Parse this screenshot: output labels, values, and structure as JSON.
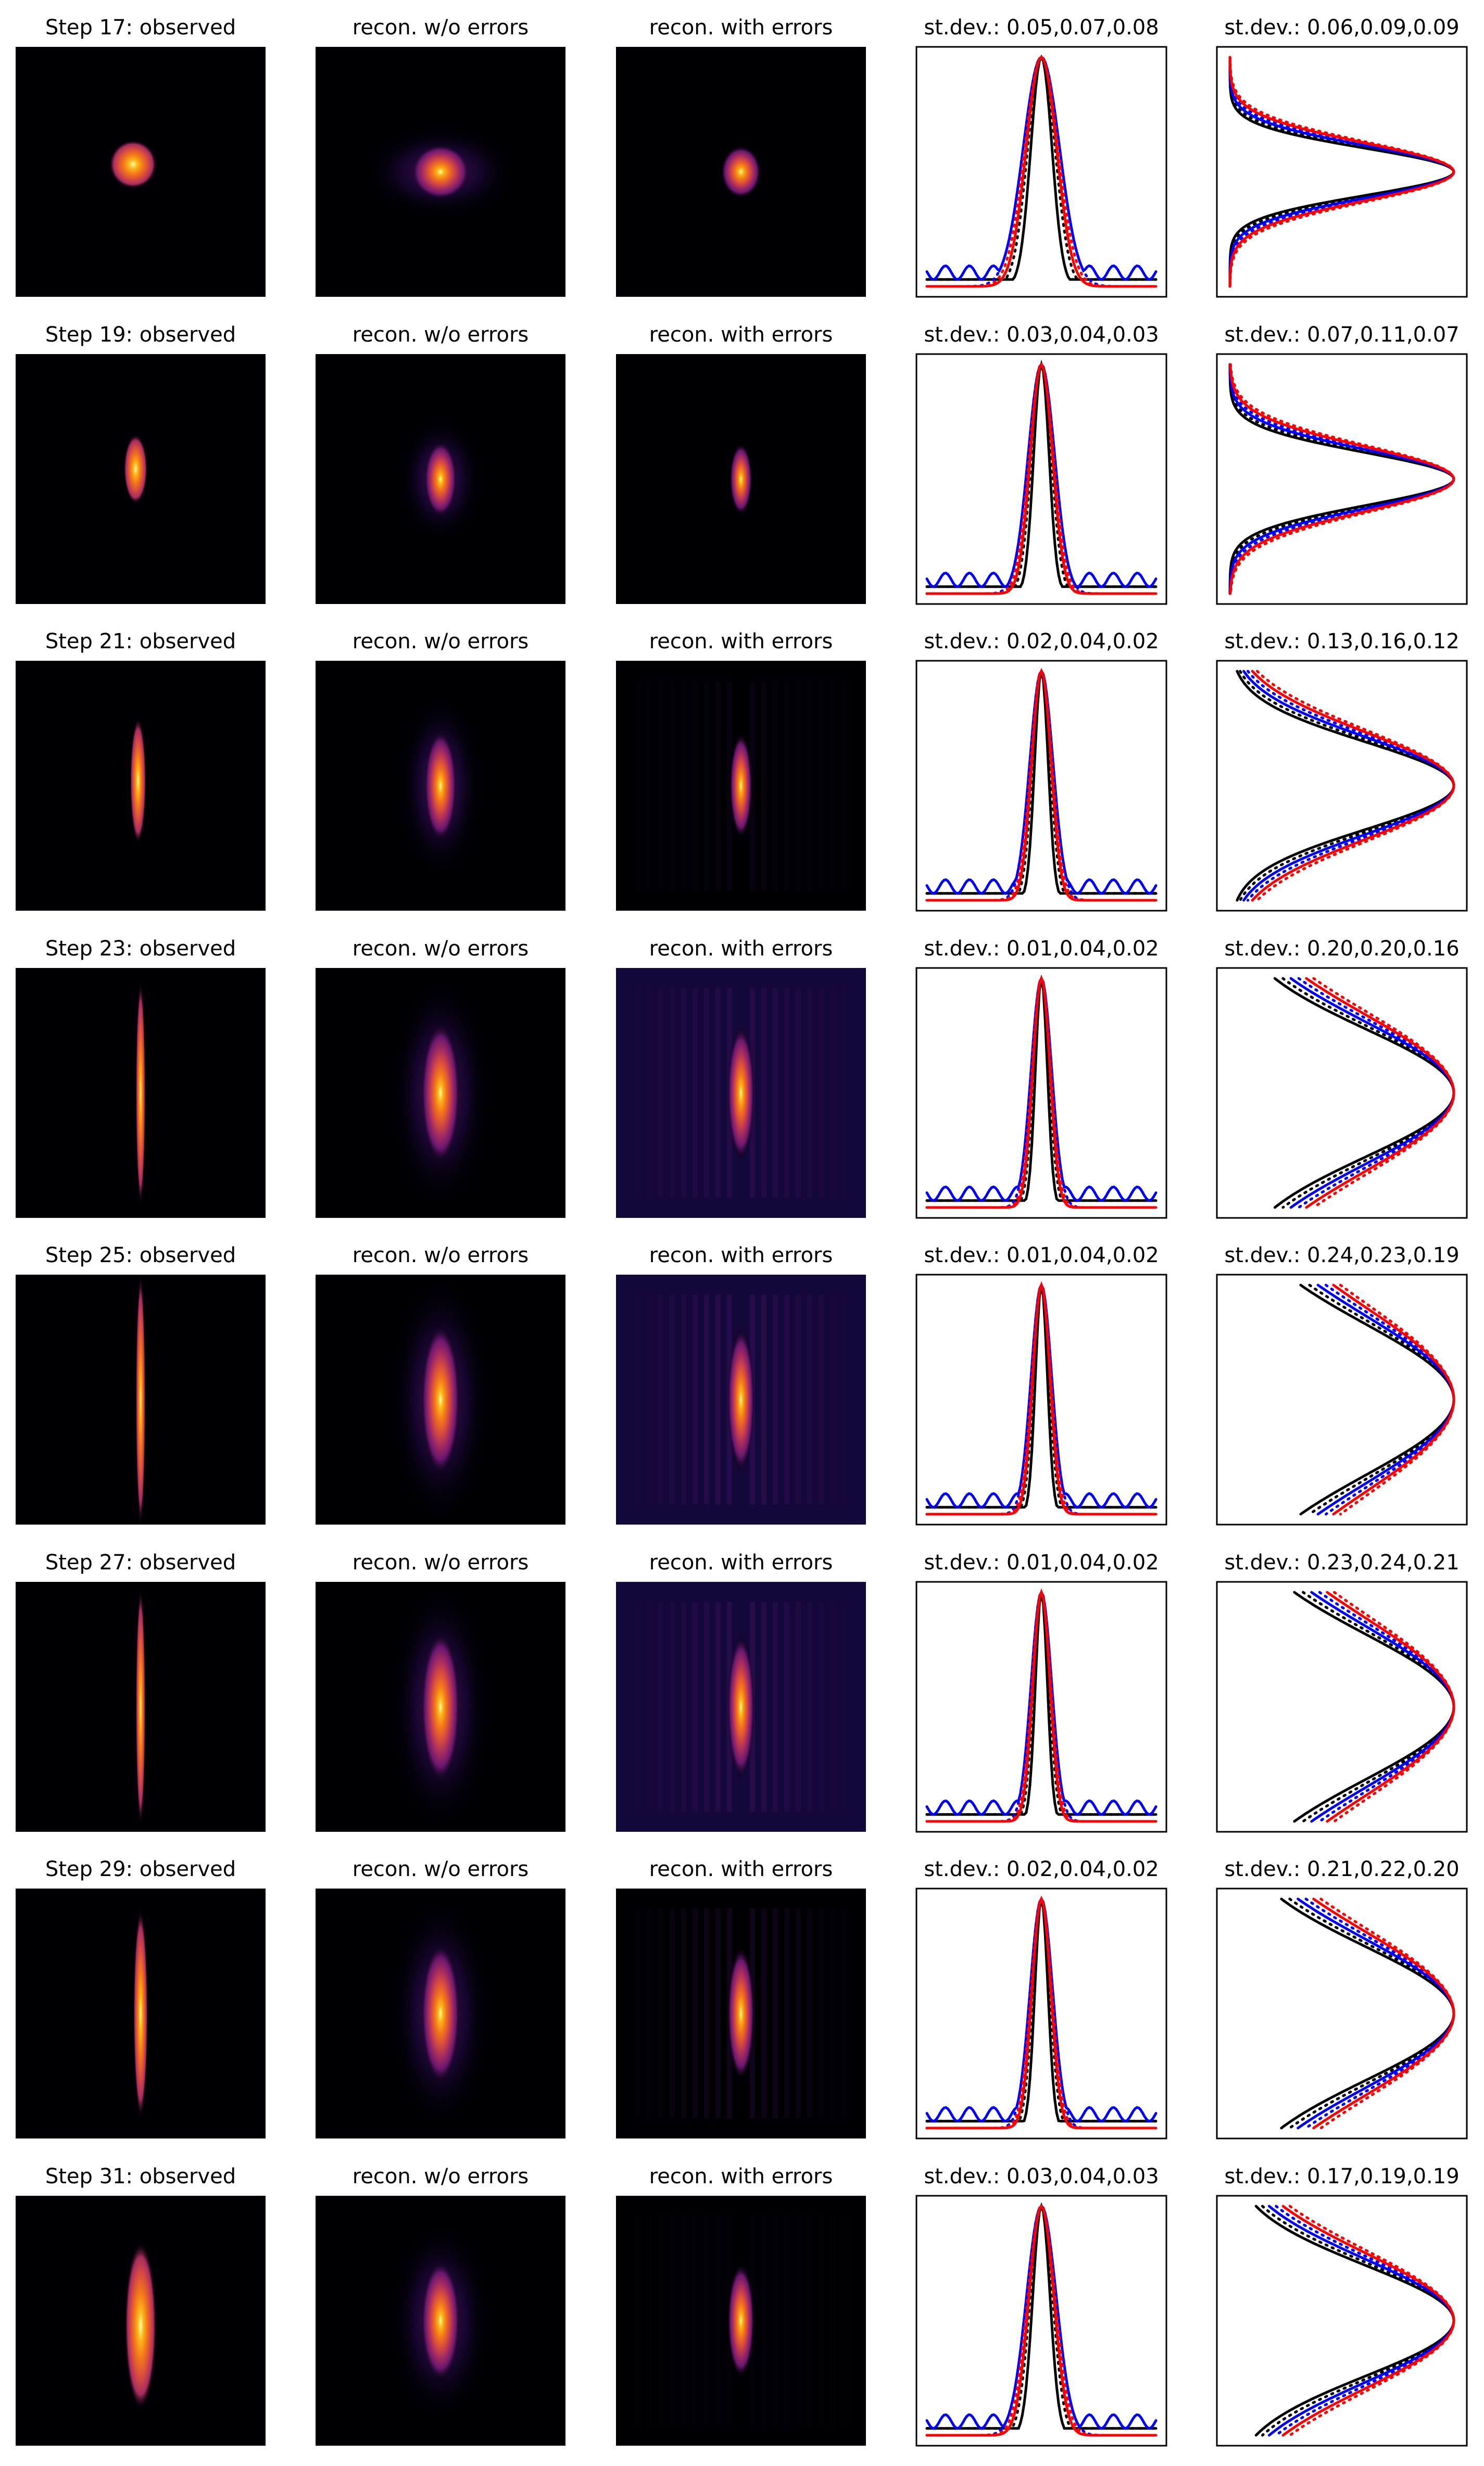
{
  "figure": {
    "column_titles": [
      "observed",
      "recon. w/o errors",
      "recon. with errors"
    ],
    "profile_title_prefix": "st.dev.: ",
    "colors": {
      "cmap": [
        "#000004",
        "#2b0a56",
        "#6a176e",
        "#a52c60",
        "#d84c3e",
        "#f37819",
        "#fbb61a",
        "#fcffa4"
      ],
      "black": "#000000",
      "blue": "#0000ff",
      "red": "#ff0000"
    }
  },
  "chart_data": {
    "type": "heatmap",
    "rows": [
      {
        "step": "Step 17: observed",
        "observed_title": "Step 17: observed",
        "stdev_x": "0.05,0.07,0.08",
        "stdev_y": "0.06,0.09,0.09",
        "blob": {
          "sx": 0.06,
          "sy": 0.07,
          "cx": -0.03,
          "cy": -0.03
        },
        "recon": {
          "sx": 0.09,
          "sy": 0.11
        },
        "stripes": 0.0
      },
      {
        "step": "Step 19: observed",
        "observed_title": "Step 19: observed",
        "stdev_x": "0.03,0.04,0.03",
        "stdev_y": "0.07,0.11,0.07",
        "blob": {
          "sx": 0.03,
          "sy": 0.1,
          "cx": -0.02,
          "cy": -0.04
        },
        "recon": {
          "sx": 0.05,
          "sy": 0.15
        },
        "stripes": 0.0
      },
      {
        "step": "Step 21: observed",
        "observed_title": "Step 21: observed",
        "stdev_x": "0.02,0.04,0.02",
        "stdev_y": "0.13,0.16,0.12",
        "blob": {
          "sx": 0.02,
          "sy": 0.18,
          "cx": -0.01,
          "cy": -0.02
        },
        "recon": {
          "sx": 0.05,
          "sy": 0.22
        },
        "stripes": 0.1
      },
      {
        "step": "Step 23: observed",
        "observed_title": "Step 23: observed",
        "stdev_x": "0.01,0.04,0.02",
        "stdev_y": "0.20,0.20,0.16",
        "blob": {
          "sx": 0.012,
          "sy": 0.32,
          "cx": 0.0,
          "cy": 0.0
        },
        "recon": {
          "sx": 0.06,
          "sy": 0.28
        },
        "stripes": 0.25
      },
      {
        "step": "Step 25: observed",
        "observed_title": "Step 25: observed",
        "stdev_x": "0.01,0.04,0.02",
        "stdev_y": "0.24,0.23,0.19",
        "blob": {
          "sx": 0.012,
          "sy": 0.36,
          "cx": 0.0,
          "cy": 0.0
        },
        "recon": {
          "sx": 0.06,
          "sy": 0.3
        },
        "stripes": 0.3
      },
      {
        "step": "Step 27: observed",
        "observed_title": "Step 27: observed",
        "stdev_x": "0.01,0.04,0.02",
        "stdev_y": "0.23,0.24,0.21",
        "blob": {
          "sx": 0.012,
          "sy": 0.34,
          "cx": 0.0,
          "cy": 0.0
        },
        "recon": {
          "sx": 0.06,
          "sy": 0.3
        },
        "stripes": 0.28
      },
      {
        "step": "Step 29: observed",
        "observed_title": "Step 29: observed",
        "stdev_x": "0.02,0.04,0.02",
        "stdev_y": "0.21,0.22,0.20",
        "blob": {
          "sx": 0.018,
          "sy": 0.3,
          "cx": 0.0,
          "cy": 0.0
        },
        "recon": {
          "sx": 0.06,
          "sy": 0.28
        },
        "stripes": 0.2
      },
      {
        "step": "Step 31: observed",
        "observed_title": "Step 31: observed",
        "stdev_x": "0.03,0.04,0.03",
        "stdev_y": "0.17,0.19,0.19",
        "blob": {
          "sx": 0.04,
          "sy": 0.24,
          "cx": 0.0,
          "cy": 0.02
        },
        "recon": {
          "sx": 0.06,
          "sy": 0.24
        },
        "stripes": 0.05
      }
    ],
    "profile_series": [
      {
        "color": "black",
        "style": "solid"
      },
      {
        "color": "black",
        "style": "dotted"
      },
      {
        "color": "blue",
        "style": "solid"
      },
      {
        "color": "blue",
        "style": "dotted"
      },
      {
        "color": "red",
        "style": "solid"
      },
      {
        "color": "red",
        "style": "dotted"
      }
    ],
    "axes": {
      "ticks": "none",
      "grid": false,
      "legend": "none"
    }
  }
}
